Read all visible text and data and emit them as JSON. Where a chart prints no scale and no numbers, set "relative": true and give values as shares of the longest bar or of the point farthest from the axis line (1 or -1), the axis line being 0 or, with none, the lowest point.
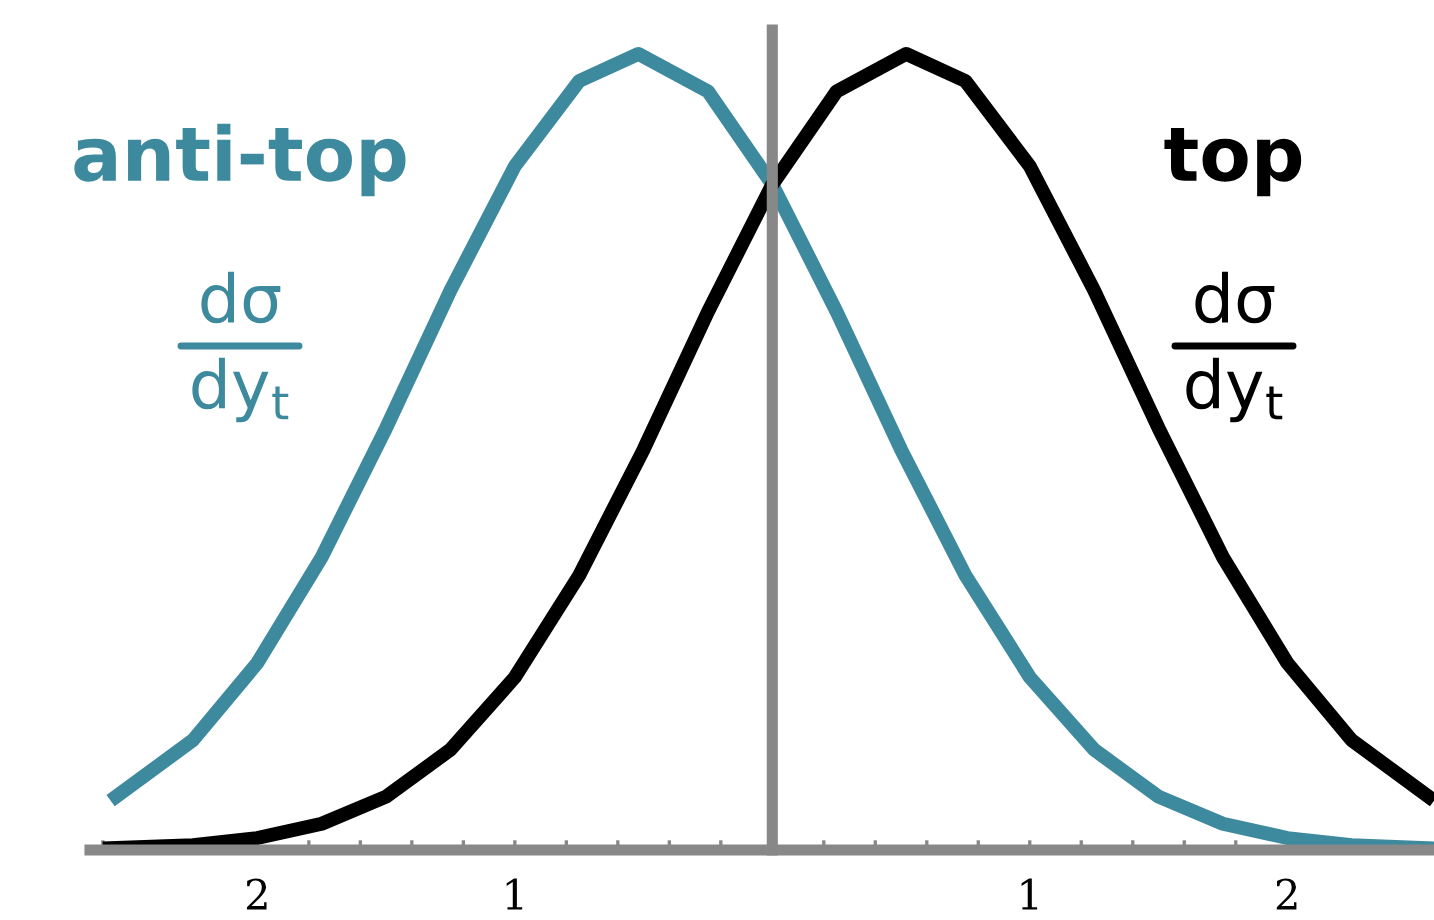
{
  "chart_data": {
    "type": "line",
    "relative": true,
    "xlim": [
      -2.65,
      2.57
    ],
    "xticks": [
      {
        "value": -2.6,
        "label": null
      },
      {
        "value": -2.4,
        "label": null
      },
      {
        "value": -2.2,
        "label": null
      },
      {
        "value": -2,
        "label": "2"
      },
      {
        "value": -1.8,
        "label": null
      },
      {
        "value": -1.6,
        "label": null
      },
      {
        "value": -1.4,
        "label": null
      },
      {
        "value": -1.2,
        "label": null
      },
      {
        "value": -1,
        "label": "1"
      },
      {
        "value": -0.8,
        "label": null
      },
      {
        "value": -0.6,
        "label": null
      },
      {
        "value": -0.4,
        "label": null
      },
      {
        "value": -0.2,
        "label": null
      },
      {
        "value": 0.2,
        "label": null
      },
      {
        "value": 0.4,
        "label": null
      },
      {
        "value": 0.6,
        "label": null
      },
      {
        "value": 0.8,
        "label": null
      },
      {
        "value": 1,
        "label": "1"
      },
      {
        "value": 1.2,
        "label": null
      },
      {
        "value": 1.4,
        "label": null
      },
      {
        "value": 1.6,
        "label": null
      },
      {
        "value": 1.8,
        "label": null
      },
      {
        "value": 2,
        "label": "2"
      },
      {
        "value": 2.2,
        "label": null
      },
      {
        "value": 2.4,
        "label": null
      }
    ],
    "grid": false,
    "legend": false,
    "marker": "none",
    "line_style": "solid",
    "series": [
      {
        "name": "anti-top",
        "color": "#3d8a9e",
        "x": [
          -2.57,
          -2.25,
          -2.0,
          -1.75,
          -1.5,
          -1.25,
          -1.0,
          -0.75,
          -0.52,
          -0.25,
          0.0,
          0.25,
          0.5,
          0.75,
          1.0,
          1.25,
          1.5,
          1.75,
          2.0,
          2.25,
          2.57
        ],
        "values": [
          0.062,
          0.138,
          0.235,
          0.368,
          0.53,
          0.703,
          0.859,
          0.966,
          1.0,
          0.953,
          0.836,
          0.676,
          0.503,
          0.345,
          0.217,
          0.126,
          0.067,
          0.033,
          0.015,
          0.006,
          0.002
        ]
      },
      {
        "name": "top",
        "color": "#000000",
        "x": [
          -2.6,
          -2.25,
          -2.0,
          -1.75,
          -1.5,
          -1.25,
          -1.0,
          -0.75,
          -0.5,
          -0.25,
          0.0,
          0.25,
          0.52,
          0.75,
          1.0,
          1.25,
          1.5,
          1.75,
          2.0,
          2.25,
          2.57
        ],
        "values": [
          0.002,
          0.006,
          0.015,
          0.033,
          0.067,
          0.126,
          0.217,
          0.345,
          0.503,
          0.676,
          0.836,
          0.953,
          1.0,
          0.966,
          0.859,
          0.703,
          0.53,
          0.368,
          0.235,
          0.138,
          0.062
        ]
      }
    ],
    "annotations": [
      "dσ",
      "dy$_{t}$",
      "dσ",
      "dy$_{t}$"
    ]
  }
}
